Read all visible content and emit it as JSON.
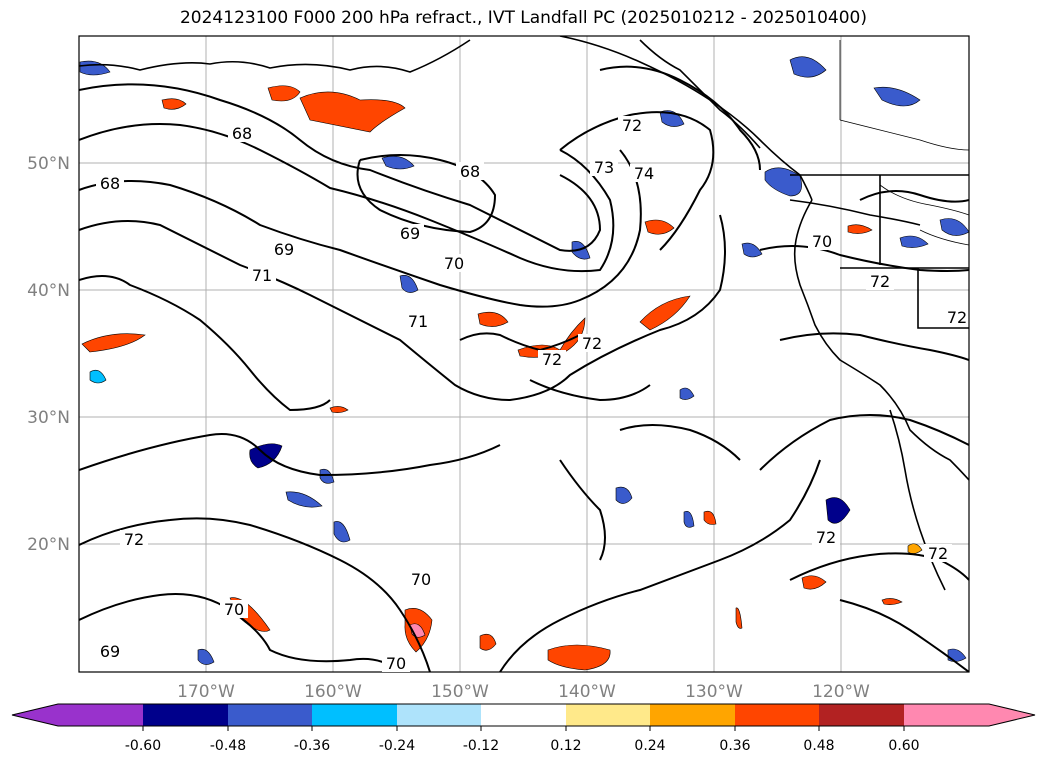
{
  "title": "2024123100 F000 200 hPa refract., IVT Landfall PC (2025010212 - 2025010400)",
  "map": {
    "lon_ticks": [
      "170°W",
      "160°W",
      "150°W",
      "140°W",
      "130°W",
      "120°W"
    ],
    "lat_ticks": [
      "50°N",
      "40°N",
      "30°N",
      "20°N"
    ],
    "grid": true,
    "contour_labels": [
      "68",
      "68",
      "68",
      "69",
      "69",
      "70",
      "71",
      "71",
      "72",
      "73",
      "74",
      "72",
      "70",
      "72",
      "72",
      "72",
      "72",
      "70",
      "70",
      "69",
      "70",
      "72",
      "72"
    ]
  },
  "colorbar": {
    "tick_labels": [
      "-0.60",
      "-0.48",
      "-0.36",
      "-0.24",
      "-0.12",
      "0.12",
      "0.24",
      "0.36",
      "0.48",
      "0.60"
    ],
    "colors": [
      "#9932cc",
      "#00008b",
      "#3a5bcc",
      "#00bfff",
      "#aee3fb",
      "#ffffff",
      "#ffe98a",
      "#ffa500",
      "#ff4500",
      "#b22222",
      "#ff88b0"
    ],
    "extend": "both"
  }
}
